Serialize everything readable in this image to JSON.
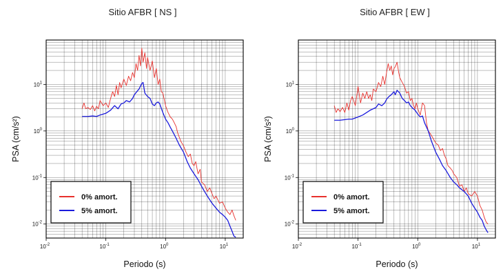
{
  "chart_data": [
    {
      "type": "line",
      "title": "Sitio AFBR [ NS ]",
      "xlabel": "Periodo (s)",
      "ylabel": "PSA (cm/s²)",
      "xscale": "log",
      "yscale": "log",
      "xlim": [
        0.01,
        20
      ],
      "ylim": [
        0.005,
        90
      ],
      "xticks": [
        {
          "base": "10",
          "exp": "-2"
        },
        {
          "base": "10",
          "exp": "-1"
        },
        {
          "base": "10",
          "exp": "0"
        },
        {
          "base": "10",
          "exp": "1"
        }
      ],
      "yticks": [
        {
          "base": "10",
          "exp": "-2"
        },
        {
          "base": "10",
          "exp": "-1"
        },
        {
          "base": "10",
          "exp": "0"
        },
        {
          "base": "10",
          "exp": "1"
        }
      ],
      "grid": true,
      "legend": "bottom-left",
      "series": [
        {
          "name": "0% amort.",
          "color": "#e8302c",
          "x": [
            0.04,
            0.043,
            0.046,
            0.05,
            0.055,
            0.06,
            0.065,
            0.07,
            0.075,
            0.08,
            0.09,
            0.1,
            0.11,
            0.12,
            0.13,
            0.14,
            0.15,
            0.16,
            0.17,
            0.18,
            0.2,
            0.22,
            0.24,
            0.26,
            0.28,
            0.3,
            0.32,
            0.34,
            0.36,
            0.38,
            0.4,
            0.42,
            0.45,
            0.48,
            0.5,
            0.55,
            0.6,
            0.65,
            0.7,
            0.75,
            0.8,
            0.85,
            0.9,
            0.95,
            1.0,
            1.1,
            1.2,
            1.3,
            1.4,
            1.5,
            1.6,
            1.8,
            2.0,
            2.2,
            2.4,
            2.6,
            2.8,
            3.0,
            3.2,
            3.5,
            3.8,
            4.0,
            4.5,
            5.0,
            5.5,
            6.0,
            6.5,
            7.0,
            8.0,
            9.0,
            10,
            11,
            12,
            13,
            14,
            15
          ],
          "y": [
            3.0,
            4.0,
            3.0,
            3.2,
            2.9,
            3.5,
            2.7,
            3.4,
            3.0,
            4.5,
            3.5,
            4.0,
            3.2,
            5.0,
            7.0,
            5.5,
            9.5,
            6.0,
            11,
            8.5,
            13,
            9.5,
            15,
            12,
            18,
            14,
            28,
            20,
            42,
            25,
            60,
            30,
            48,
            22,
            38,
            20,
            32,
            14,
            22,
            10,
            13,
            7.0,
            6.5,
            4.8,
            3.5,
            2.5,
            2.0,
            1.8,
            1.5,
            1.25,
            0.9,
            0.6,
            0.48,
            0.35,
            0.28,
            0.32,
            0.2,
            0.18,
            0.22,
            0.12,
            0.15,
            0.08,
            0.07,
            0.05,
            0.06,
            0.045,
            0.035,
            0.04,
            0.028,
            0.03,
            0.022,
            0.018,
            0.016,
            0.02,
            0.015,
            0.012
          ]
        },
        {
          "name": "5% amort.",
          "color": "#1a1adc",
          "x": [
            0.04,
            0.05,
            0.06,
            0.07,
            0.08,
            0.09,
            0.1,
            0.12,
            0.14,
            0.16,
            0.18,
            0.2,
            0.22,
            0.25,
            0.28,
            0.3,
            0.33,
            0.36,
            0.4,
            0.42,
            0.45,
            0.5,
            0.55,
            0.6,
            0.65,
            0.7,
            0.75,
            0.8,
            0.9,
            1.0,
            1.1,
            1.2,
            1.3,
            1.5,
            1.7,
            2.0,
            2.3,
            2.6,
            3.0,
            3.5,
            4.0,
            4.5,
            5.0,
            6.0,
            7.0,
            8.0,
            9.0,
            10,
            11,
            12,
            13,
            14,
            15
          ],
          "y": [
            2.05,
            2.05,
            2.1,
            2.05,
            2.2,
            2.3,
            2.4,
            2.8,
            3.5,
            3.0,
            3.8,
            4.0,
            4.5,
            4.2,
            5.0,
            6.0,
            7.0,
            8.0,
            10.5,
            11,
            6.5,
            5.5,
            5.0,
            3.8,
            3.5,
            4.0,
            4.2,
            3.8,
            2.5,
            1.8,
            1.5,
            1.2,
            1.0,
            0.7,
            0.5,
            0.35,
            0.22,
            0.16,
            0.12,
            0.09,
            0.065,
            0.05,
            0.04,
            0.028,
            0.022,
            0.018,
            0.016,
            0.014,
            0.012,
            0.009,
            0.007,
            0.0055,
            0.0052
          ]
        }
      ]
    },
    {
      "type": "line",
      "title": "Sitio AFBR [ EW ]",
      "xlabel": "Periodo (s)",
      "ylabel": "PSA (cm/s²)",
      "xscale": "log",
      "yscale": "log",
      "xlim": [
        0.01,
        20
      ],
      "ylim": [
        0.005,
        90
      ],
      "xticks": [
        {
          "base": "10",
          "exp": "-2"
        },
        {
          "base": "10",
          "exp": "-1"
        },
        {
          "base": "10",
          "exp": "0"
        },
        {
          "base": "10",
          "exp": "1"
        }
      ],
      "yticks": [
        {
          "base": "10",
          "exp": "-2"
        },
        {
          "base": "10",
          "exp": "-1"
        },
        {
          "base": "10",
          "exp": "0"
        },
        {
          "base": "10",
          "exp": "1"
        }
      ],
      "grid": true,
      "legend": "bottom-left",
      "series": [
        {
          "name": "0% amort.",
          "color": "#e8302c",
          "x": [
            0.04,
            0.043,
            0.046,
            0.05,
            0.055,
            0.06,
            0.065,
            0.07,
            0.075,
            0.08,
            0.09,
            0.1,
            0.11,
            0.12,
            0.13,
            0.14,
            0.15,
            0.16,
            0.17,
            0.18,
            0.2,
            0.22,
            0.24,
            0.26,
            0.28,
            0.3,
            0.32,
            0.34,
            0.36,
            0.38,
            0.4,
            0.42,
            0.45,
            0.48,
            0.5,
            0.55,
            0.6,
            0.65,
            0.7,
            0.75,
            0.8,
            0.85,
            0.9,
            0.95,
            1.0,
            1.1,
            1.2,
            1.3,
            1.4,
            1.5,
            1.6,
            1.8,
            2.0,
            2.2,
            2.4,
            2.6,
            2.8,
            3.0,
            3.2,
            3.5,
            3.8,
            4.0,
            4.5,
            5.0,
            5.5,
            6.0,
            6.5,
            7.0,
            8.0,
            9.0,
            10,
            11,
            12,
            13,
            14,
            15
          ],
          "y": [
            3.5,
            2.5,
            3.0,
            2.6,
            3.2,
            2.5,
            4.0,
            2.8,
            4.5,
            5.5,
            3.5,
            9.0,
            4.0,
            6.5,
            5.0,
            7.0,
            5.0,
            6.0,
            4.5,
            8.0,
            7.0,
            11,
            9.0,
            15,
            10,
            18,
            28,
            20,
            25,
            16,
            22,
            24,
            30,
            18,
            14,
            11,
            9.0,
            6.5,
            7.0,
            4.5,
            5.0,
            3.5,
            3.0,
            4.0,
            3.0,
            2.2,
            4.0,
            3.5,
            1.5,
            1.0,
            0.9,
            0.7,
            0.55,
            0.5,
            0.38,
            0.42,
            0.3,
            0.25,
            0.18,
            0.16,
            0.14,
            0.12,
            0.1,
            0.065,
            0.07,
            0.05,
            0.06,
            0.045,
            0.04,
            0.05,
            0.04,
            0.025,
            0.02,
            0.014,
            0.011,
            0.01
          ]
        },
        {
          "name": "5% amort.",
          "color": "#1a1adc",
          "x": [
            0.04,
            0.05,
            0.06,
            0.07,
            0.08,
            0.09,
            0.1,
            0.12,
            0.14,
            0.16,
            0.18,
            0.2,
            0.22,
            0.25,
            0.28,
            0.3,
            0.33,
            0.36,
            0.4,
            0.42,
            0.45,
            0.5,
            0.55,
            0.6,
            0.65,
            0.7,
            0.75,
            0.8,
            0.9,
            1.0,
            1.1,
            1.2,
            1.3,
            1.5,
            1.7,
            2.0,
            2.3,
            2.6,
            3.0,
            3.5,
            4.0,
            4.5,
            5.0,
            6.0,
            7.0,
            8.0,
            9.0,
            10,
            11,
            12,
            13,
            14,
            15
          ],
          "y": [
            1.7,
            1.7,
            1.75,
            1.8,
            1.8,
            1.9,
            2.0,
            2.2,
            2.5,
            2.8,
            3.0,
            3.2,
            3.8,
            3.5,
            4.0,
            4.8,
            5.5,
            6.0,
            7.0,
            6.0,
            7.5,
            6.5,
            5.0,
            4.5,
            4.0,
            4.2,
            3.5,
            3.2,
            2.8,
            2.3,
            2.0,
            2.1,
            1.5,
            1.0,
            0.6,
            0.35,
            0.25,
            0.18,
            0.14,
            0.1,
            0.08,
            0.07,
            0.06,
            0.05,
            0.04,
            0.028,
            0.022,
            0.018,
            0.014,
            0.012,
            0.009,
            0.0075,
            0.0065
          ]
        }
      ]
    }
  ]
}
